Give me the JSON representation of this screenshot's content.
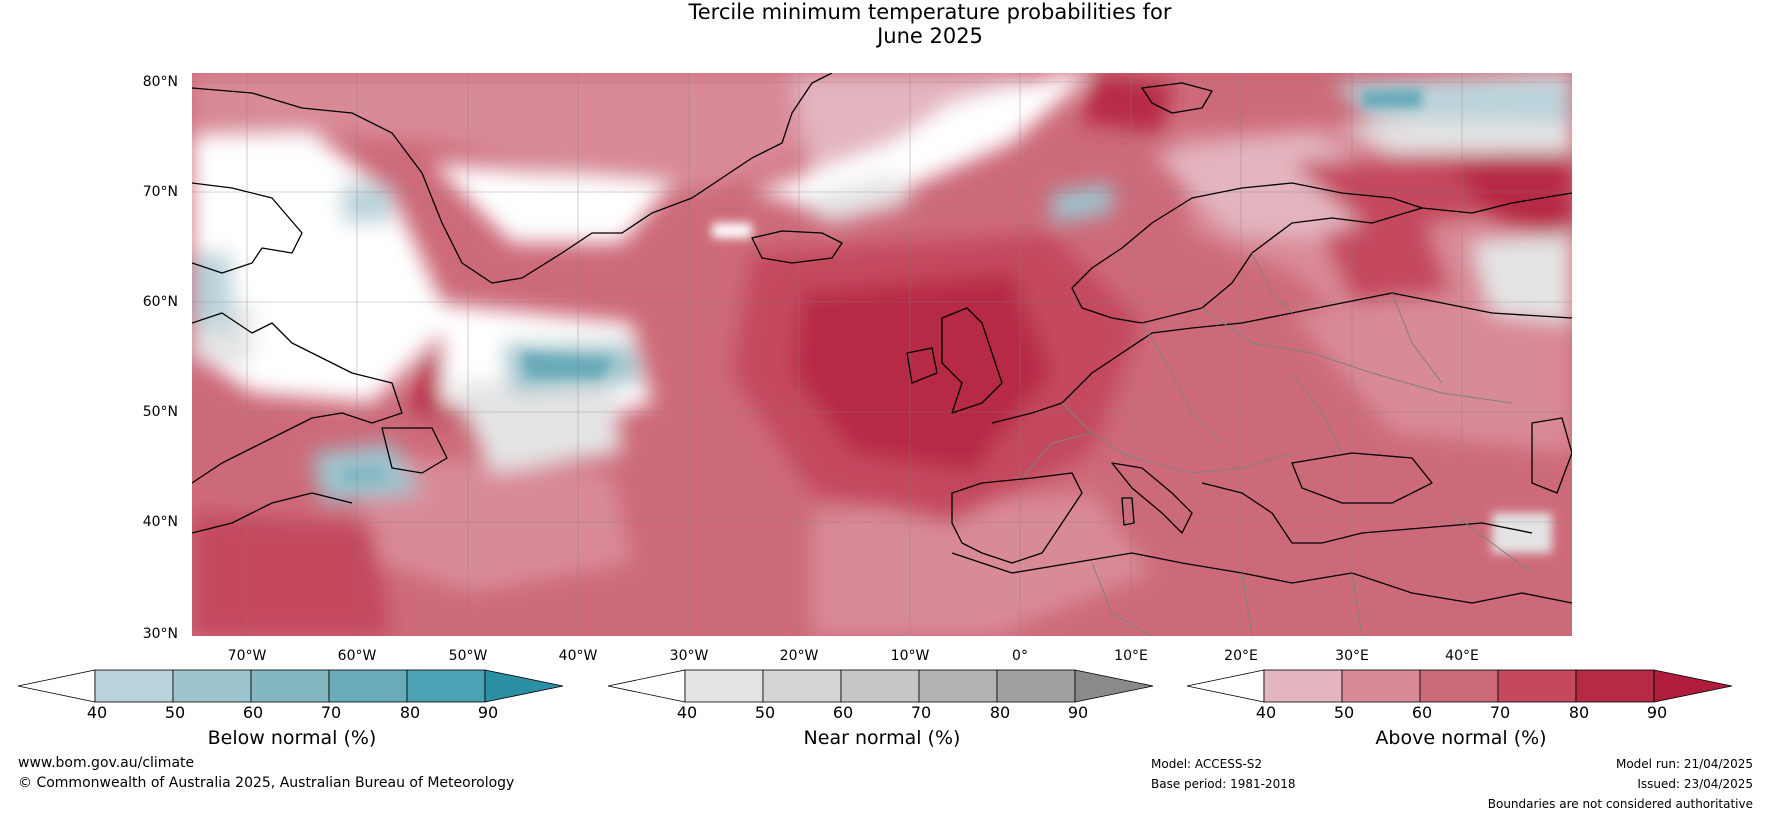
{
  "title": {
    "line1": "Tercile minimum temperature probabilities for",
    "line2": "June 2025"
  },
  "map": {
    "lat_ticks": [
      "80°N",
      "70°N",
      "60°N",
      "50°N",
      "40°N",
      "30°N"
    ],
    "lon_ticks": [
      "70°W",
      "60°W",
      "50°W",
      "40°W",
      "30°W",
      "20°W",
      "10°W",
      "0°",
      "10°E",
      "20°E",
      "30°E",
      "40°E"
    ],
    "lon_range": [
      -75,
      50
    ],
    "lat_range": [
      30,
      81
    ],
    "grid": true,
    "colors": {
      "above": [
        "#e3b5bf",
        "#d98a97",
        "#cd6a79",
        "#c4495d",
        "#b72a44",
        "#b01c3c"
      ],
      "near": [
        "#e4e4e4",
        "#d5d5d5",
        "#c6c6c6",
        "#b3b3b3",
        "#a0a0a0",
        "#8a8a8a"
      ],
      "below": [
        "#bad3da",
        "#9ec4cd",
        "#85b7c2",
        "#6aabb9",
        "#4da1b4",
        "#2b8fa5"
      ],
      "coast": "#000000",
      "borders": "#808080"
    }
  },
  "colorbars": [
    {
      "label": "Below normal (%)",
      "ticks": [
        "40",
        "50",
        "60",
        "70",
        "80",
        "90"
      ],
      "colors": [
        "#ffffff",
        "#bad3da",
        "#9ec4cd",
        "#85b7c2",
        "#6aabb9",
        "#4da1b4",
        "#2b8fa5"
      ]
    },
    {
      "label": "Near normal (%)",
      "ticks": [
        "40",
        "50",
        "60",
        "70",
        "80",
        "90"
      ],
      "colors": [
        "#ffffff",
        "#e4e4e4",
        "#d5d5d5",
        "#c6c6c6",
        "#b3b3b3",
        "#a0a0a0",
        "#8a8a8a"
      ]
    },
    {
      "label": "Above normal (%)",
      "ticks": [
        "40",
        "50",
        "60",
        "70",
        "80",
        "90"
      ],
      "colors": [
        "#ffffff",
        "#e3b5bf",
        "#d98a97",
        "#cd6a79",
        "#c4495d",
        "#b72a44",
        "#b01c3c"
      ]
    }
  ],
  "footer": {
    "website": "www.bom.gov.au/climate",
    "copyright": "© Commonwealth of Australia 2025, Australian Bureau of Meteorology",
    "model": "Model: ACCESS-S2",
    "base_period": "Base period: 1981-2018",
    "model_run": "Model run: 21/04/2025",
    "issued": "Issued: 23/04/2025",
    "disclaimer": "Boundaries are not considered authoritative"
  }
}
